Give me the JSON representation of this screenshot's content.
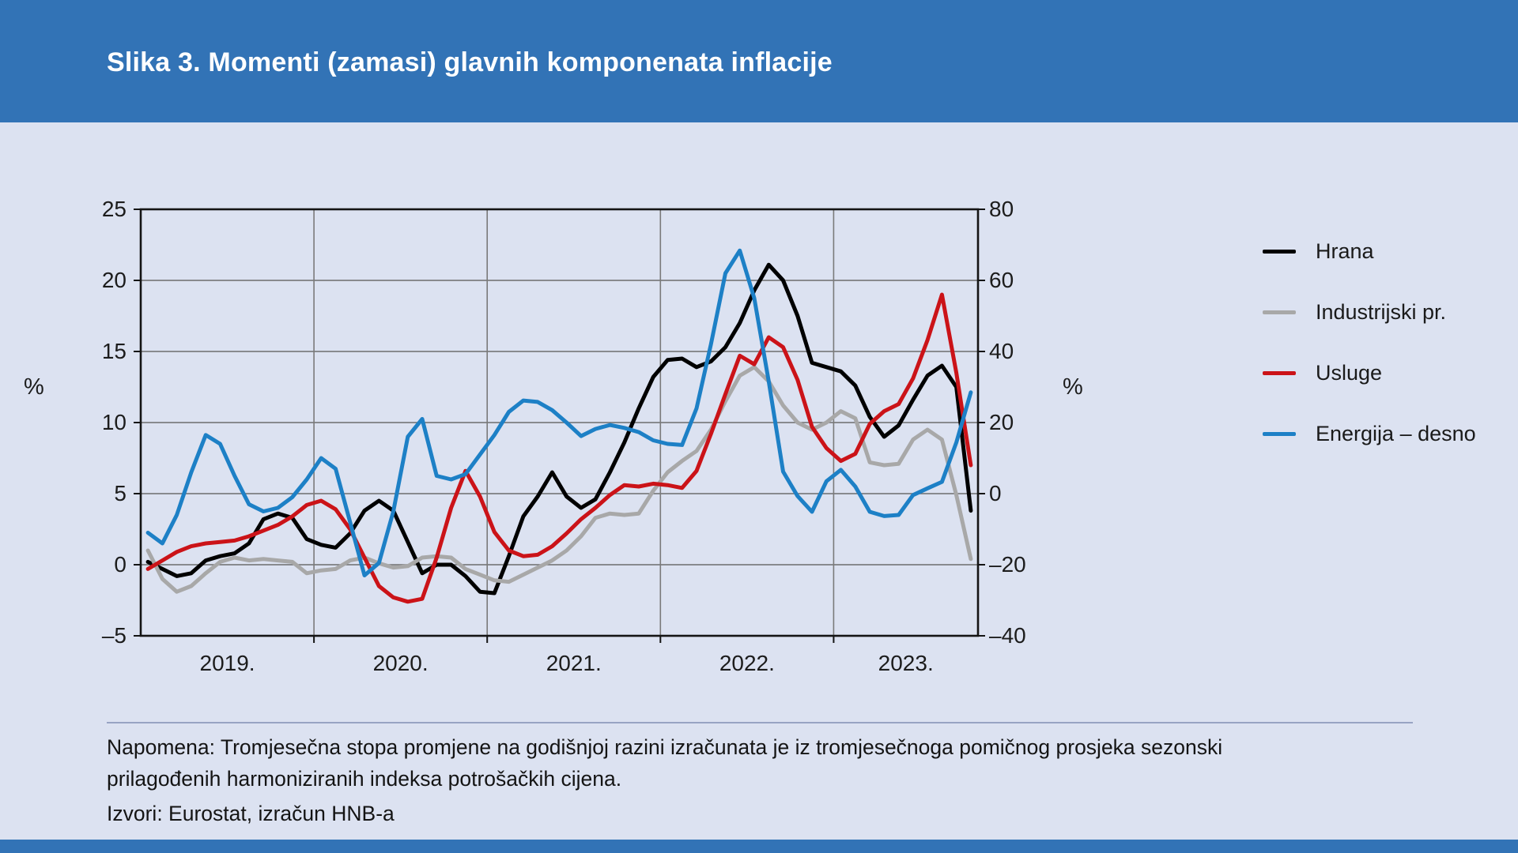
{
  "header": {
    "title": "Slika 3. Momenti (zamasi) glavnih komponenata inflacije",
    "background_color": "#3273b6"
  },
  "footer": {
    "note": "Napomena: Tromjesečna stopa promjene na godišnjoj razini izračunata je iz tromjesečnoga pomičnog prosjeka sezonski prilagođenih harmoniziranih indeksa potrošačkih cijena.",
    "sources": "Izvori: Eurostat, izračun HNB-a"
  },
  "chart_data": {
    "type": "line",
    "title": "Momenti (zamasi) glavnih komponenata inflacije",
    "x_axis": {
      "unit": "monthly",
      "start": "2019-01",
      "end": "2023-10",
      "tick_labels": [
        "2019.",
        "2020.",
        "2021.",
        "2022.",
        "2023."
      ],
      "year_boundaries_months": [
        12,
        24,
        36,
        48
      ]
    },
    "left_axis": {
      "label": "%",
      "min": -5,
      "max": 25,
      "tick_labels": [
        "25",
        "20",
        "15",
        "10",
        "5",
        "0",
        "–5"
      ]
    },
    "right_axis": {
      "label": "%",
      "min": -40,
      "max": 80,
      "tick_labels": [
        "80",
        "60",
        "40",
        "20",
        "0",
        "–20",
        "–40"
      ]
    },
    "grid": true,
    "legend_position": "right",
    "series": [
      {
        "name": "Hrana",
        "color": "#000000",
        "axis": "left",
        "values": [
          0.2,
          -0.3,
          -0.8,
          -0.6,
          0.3,
          0.6,
          0.8,
          1.5,
          3.2,
          3.6,
          3.3,
          1.8,
          1.4,
          1.2,
          2.2,
          3.8,
          4.5,
          3.8,
          1.6,
          -0.6,
          0.0,
          0.0,
          -0.8,
          -1.9,
          -2.0,
          0.6,
          3.4,
          4.8,
          6.5,
          4.8,
          4.0,
          4.6,
          6.5,
          8.6,
          11.0,
          13.2,
          14.4,
          14.5,
          13.9,
          14.3,
          15.3,
          17.0,
          19.3,
          21.1,
          20.0,
          17.5,
          14.2,
          13.9,
          13.6,
          12.6,
          10.4,
          9.0,
          9.8,
          11.6,
          13.3,
          14.0,
          12.5,
          3.8
        ]
      },
      {
        "name": "Industrijski pr.",
        "color": "#a8a8a8",
        "axis": "left",
        "values": [
          1.0,
          -1.0,
          -1.9,
          -1.5,
          -0.6,
          0.2,
          0.5,
          0.3,
          0.4,
          0.3,
          0.2,
          -0.6,
          -0.4,
          -0.3,
          0.3,
          0.5,
          0.1,
          -0.2,
          -0.1,
          0.5,
          0.6,
          0.5,
          -0.3,
          -0.7,
          -1.1,
          -1.2,
          -0.7,
          -0.2,
          0.3,
          1.0,
          2.0,
          3.3,
          3.6,
          3.5,
          3.6,
          5.2,
          6.5,
          7.3,
          8.0,
          9.5,
          11.5,
          13.3,
          13.9,
          12.9,
          11.2,
          10.0,
          9.5,
          10.0,
          10.8,
          10.3,
          7.2,
          7.0,
          7.1,
          8.8,
          9.5,
          8.8,
          4.9,
          0.4
        ]
      },
      {
        "name": "Usluge",
        "color": "#cb1318",
        "axis": "left",
        "values": [
          -0.3,
          0.3,
          0.9,
          1.3,
          1.5,
          1.6,
          1.7,
          2.0,
          2.4,
          2.8,
          3.4,
          4.2,
          4.5,
          3.9,
          2.5,
          0.5,
          -1.5,
          -2.3,
          -2.6,
          -2.4,
          0.5,
          4.0,
          6.6,
          4.8,
          2.3,
          1.0,
          0.6,
          0.7,
          1.3,
          2.2,
          3.2,
          4.0,
          4.9,
          5.6,
          5.5,
          5.7,
          5.6,
          5.4,
          6.6,
          9.2,
          12.0,
          14.7,
          14.1,
          16.0,
          15.3,
          13.0,
          9.7,
          8.2,
          7.3,
          7.8,
          9.9,
          10.8,
          11.3,
          13.1,
          15.8,
          19.0,
          13.5,
          7.0
        ]
      },
      {
        "name": "Energija – desno",
        "color": "#1d80c6",
        "axis": "right",
        "values": [
          -11,
          -14,
          -6,
          6,
          16.5,
          14,
          5,
          -3,
          -5,
          -4,
          -1,
          4,
          10,
          7,
          -8,
          -23,
          -19.5,
          -5,
          16,
          21,
          5,
          4,
          5.5,
          11,
          16.5,
          23,
          26.2,
          25.8,
          23.5,
          20,
          16.2,
          18.2,
          19.3,
          18.5,
          17.3,
          15,
          14,
          13.7,
          24,
          42,
          62,
          68.4,
          55,
          31.6,
          6.2,
          -0.7,
          -5.1,
          3.5,
          6.7,
          2.0,
          -5.1,
          -6.3,
          -6.0,
          -0.4,
          1.5,
          3.3,
          14.4,
          28.5
        ]
      }
    ]
  }
}
